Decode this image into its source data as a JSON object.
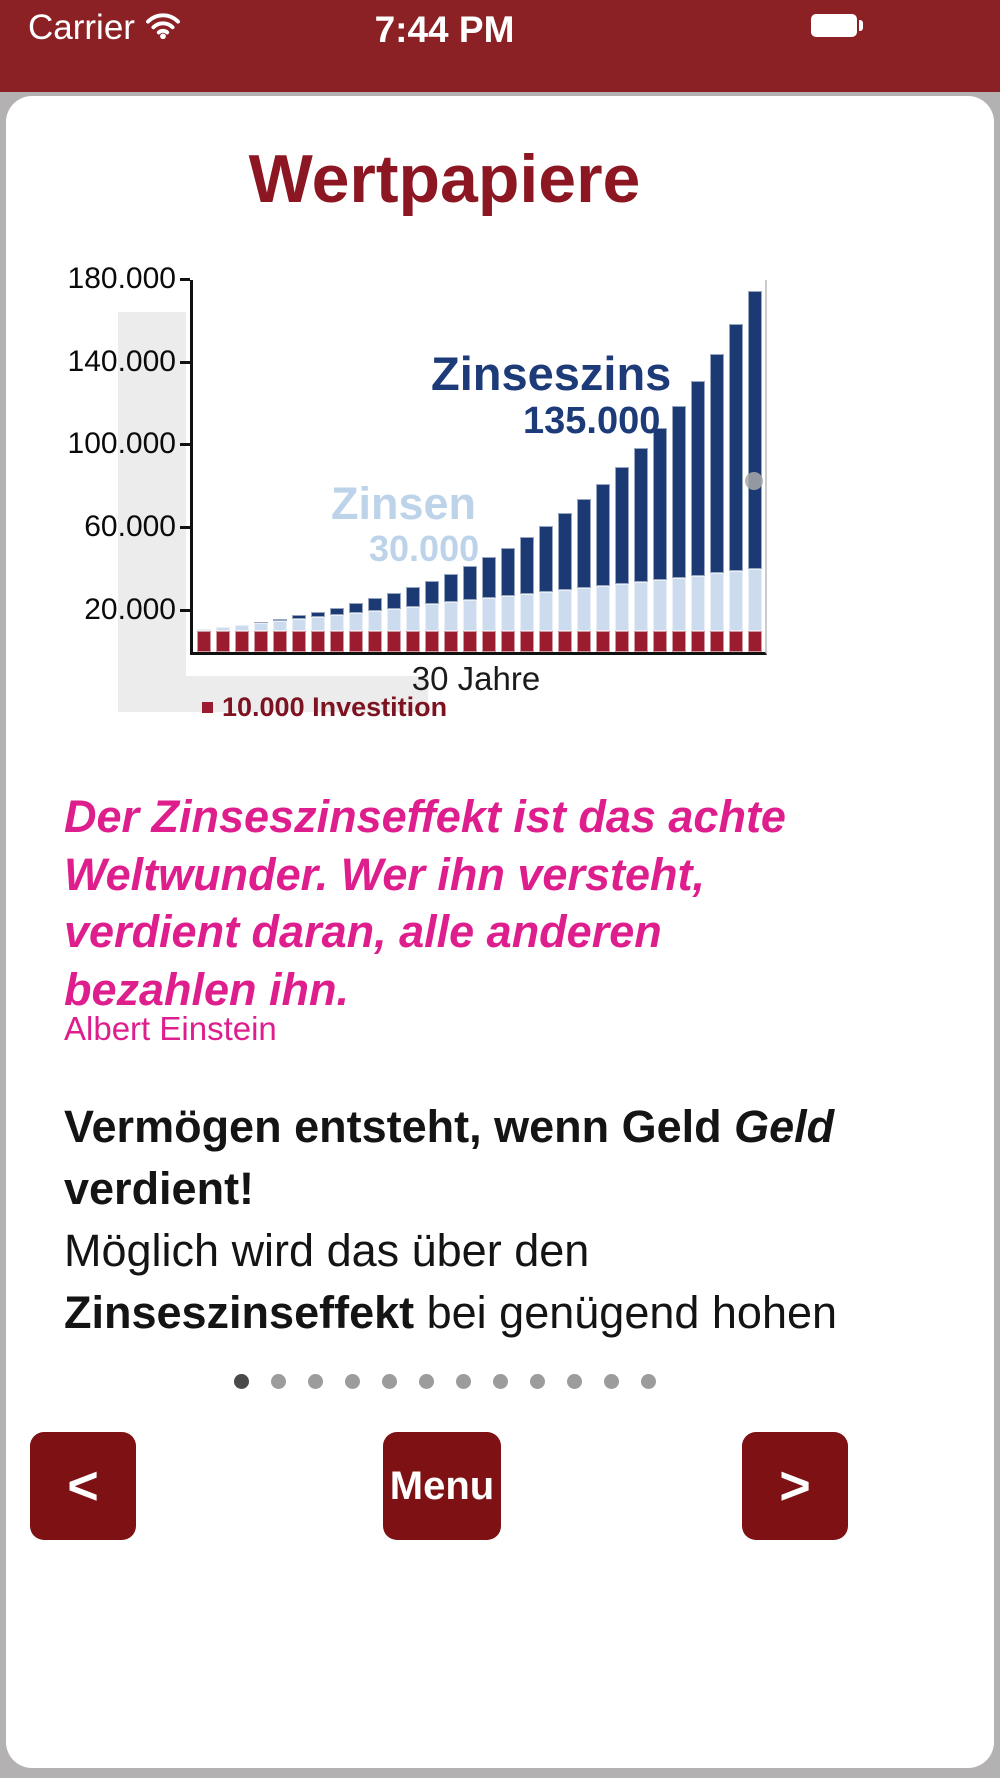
{
  "status_bar": {
    "carrier": "Carrier",
    "time": "7:44 PM",
    "bg_color": "#8b2125"
  },
  "page": {
    "title": "Wertpapiere"
  },
  "chart_data": {
    "type": "bar",
    "stacked": true,
    "x_label": "30 Jahre",
    "x_years": 30,
    "ylim": [
      0,
      180000
    ],
    "grid": false,
    "y_tick_values": [
      180000,
      140000,
      100000,
      60000,
      20000
    ],
    "y_tick_labels": [
      "180.000",
      "140.000",
      "100.000",
      "60.000",
      "20.000"
    ],
    "series": [
      {
        "name": "Investition",
        "color": "#9a1c2e",
        "values": [
          10000,
          10000,
          10000,
          10000,
          10000,
          10000,
          10000,
          10000,
          10000,
          10000,
          10000,
          10000,
          10000,
          10000,
          10000,
          10000,
          10000,
          10000,
          10000,
          10000,
          10000,
          10000,
          10000,
          10000,
          10000,
          10000,
          10000,
          10000,
          10000,
          10000
        ]
      },
      {
        "name": "Zinsen",
        "color": "#ccdcee",
        "values": [
          1000,
          2000,
          3000,
          4000,
          5000,
          6000,
          7000,
          8000,
          9000,
          10000,
          11000,
          12000,
          13000,
          14000,
          15000,
          16000,
          17000,
          18000,
          19000,
          20000,
          21000,
          22000,
          23000,
          24000,
          25000,
          26000,
          27000,
          28000,
          29000,
          30000
        ]
      },
      {
        "name": "Zinseszins",
        "color": "#1b3a74",
        "values": [
          0,
          100,
          310,
          641,
          1105,
          1716,
          2487,
          3436,
          4579,
          5937,
          7531,
          9384,
          11523,
          13975,
          16772,
          19950,
          23545,
          27599,
          32159,
          37275,
          43002,
          49403,
          56543,
          64497,
          73347,
          83182,
          94100,
          106210,
          119631,
          134494
        ]
      }
    ],
    "annotations": {
      "zinseszins_label": "Zinseszins",
      "zinseszins_value": "135.000",
      "zinsen_label": "Zinsen",
      "zinsen_value": "30.000"
    },
    "legend_label": "10.000 Investition"
  },
  "quote": {
    "text": "Der Zinseszinseffekt ist das achte Weltwunder. Wer ihn versteht, verdient daran, alle anderen bezahlen ihn.",
    "attribution": "Albert Einstein"
  },
  "body": {
    "p1_bold": "Vermögen entsteht, wenn Geld ",
    "p1_bold_italic": "Geld",
    "p1_bold_end": " verdient!",
    "p2_regular": "Möglich wird das über den ",
    "p2_bold": "Zinseszinseffekt",
    "p2_end": " bei genügend hohen"
  },
  "pagination": {
    "count": 12,
    "active_index": 0
  },
  "nav": {
    "prev_label": "<",
    "menu_label": "Menu",
    "next_label": ">"
  }
}
